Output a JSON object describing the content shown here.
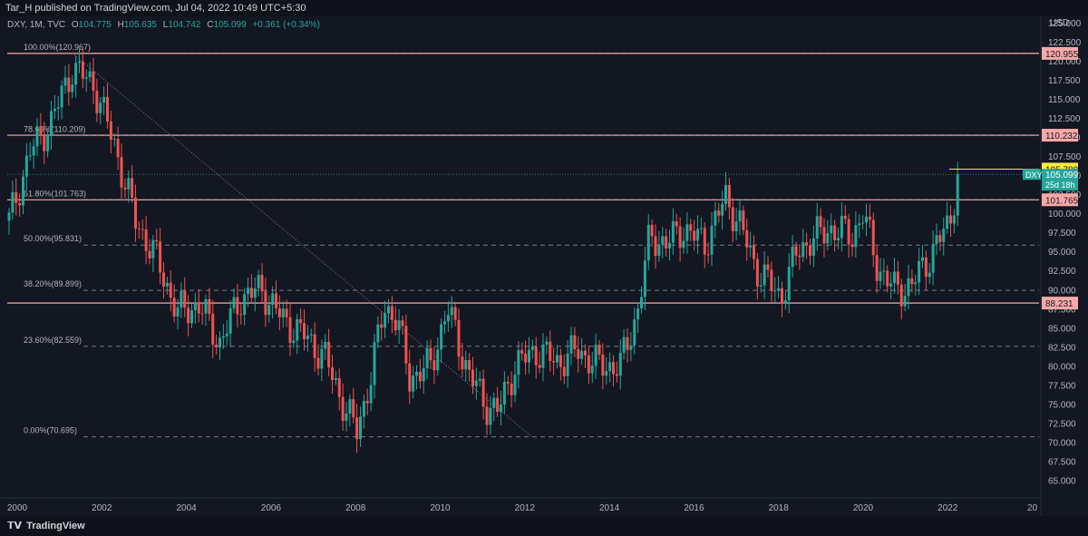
{
  "header": {
    "published": "Tar_H published on TradingView.com, Jul 04, 2022 10:49 UTC+5:30"
  },
  "legend": {
    "symbol": "DXY, 1M, TVC",
    "o_label": "O",
    "o_value": "104.775",
    "h_label": "H",
    "h_value": "105.635",
    "l_label": "L",
    "l_value": "104.742",
    "c_label": "C",
    "c_value": "105.099",
    "change": "+0.361 (+0.34%)"
  },
  "footer": {
    "brand": "TradingView",
    "logo_icon": "tradingview-logo-icon"
  },
  "colors": {
    "background": "#131722",
    "up": "#26a69a",
    "down": "#ef5350",
    "level_line": "#f7a9a8",
    "fib_line": "#787b86",
    "price_label_bg": "#f7a9a8",
    "last_price_bg": "#26a69a",
    "high_label_bg": "#ffeb3b"
  },
  "chart_data": {
    "type": "candlestick",
    "currency_label": "USD",
    "x_tick_labels": [
      "2000",
      "2002",
      "2004",
      "2006",
      "2008",
      "2010",
      "2012",
      "2014",
      "2016",
      "2018",
      "2020",
      "2022",
      "20"
    ],
    "y_tick_labels": [
      "125.000",
      "122.500",
      "120.000",
      "117.500",
      "115.000",
      "112.500",
      "110.000",
      "107.500",
      "105.000",
      "102.500",
      "100.000",
      "97.500",
      "95.000",
      "92.500",
      "90.000",
      "87.500",
      "85.000",
      "82.500",
      "80.000",
      "77.500",
      "75.000",
      "72.500",
      "70.000",
      "67.500",
      "65.000"
    ],
    "ylim": [
      64.0,
      127.0
    ],
    "xlim": [
      2000.0,
      2024.0
    ],
    "horizontal_levels": [
      {
        "price": 120.955,
        "label": "120.955"
      },
      {
        "price": 110.232,
        "label": "110.232"
      },
      {
        "price": 101.765,
        "label": "101.765"
      },
      {
        "price": 88.231,
        "label": "88.231"
      }
    ],
    "fib_levels": [
      {
        "price": 120.967,
        "label": "100.00%(120.967)"
      },
      {
        "price": 110.209,
        "label": "78.60%(110.209)"
      },
      {
        "price": 101.763,
        "label": "61.80%(101.763)"
      },
      {
        "price": 95.831,
        "label": "50.00%(95.831)"
      },
      {
        "price": 89.899,
        "label": "38.20%(89.899)"
      },
      {
        "price": 82.559,
        "label": "23.60%(82.559)"
      },
      {
        "price": 70.695,
        "label": "0.00%(70.695)"
      }
    ],
    "trend_line": {
      "x": [
        2001.5,
        2012.4
      ],
      "y": [
        121.0,
        70.7
      ]
    },
    "high_price": {
      "price": 105.788,
      "label": "105.788"
    },
    "last_price": {
      "price": 105.099,
      "label": "105.099",
      "symbol": "DXY",
      "countdown": "25d 18h"
    },
    "anchors": {
      "x": [
        2000.0,
        2000.5,
        2001.0,
        2001.5,
        2002.0,
        2002.5,
        2003.0,
        2003.5,
        2004.0,
        2004.5,
        2005.0,
        2005.5,
        2006.0,
        2006.5,
        2007.0,
        2007.5,
        2008.0,
        2008.25,
        2008.6,
        2008.9,
        2009.2,
        2009.5,
        2010.0,
        2010.4,
        2010.9,
        2011.3,
        2011.6,
        2012.0,
        2012.5,
        2013.0,
        2013.5,
        2014.0,
        2014.5,
        2014.9,
        2015.2,
        2015.6,
        2016.0,
        2016.5,
        2017.0,
        2017.3,
        2017.7,
        2018.0,
        2018.3,
        2018.7,
        2019.0,
        2019.5,
        2020.0,
        2020.25,
        2020.6,
        2021.0,
        2021.4,
        2021.8,
        2022.0,
        2022.3,
        2022.5
      ],
      "y": [
        99.0,
        108.0,
        112.0,
        119.0,
        117.0,
        109.0,
        99.0,
        94.0,
        87.0,
        88.0,
        83.0,
        89.0,
        90.0,
        86.0,
        84.0,
        81.0,
        74.0,
        71.5,
        79.0,
        88.0,
        86.0,
        78.5,
        80.0,
        87.5,
        79.0,
        75.0,
        74.0,
        80.0,
        82.0,
        80.5,
        82.0,
        80.0,
        80.0,
        87.0,
        97.0,
        96.0,
        98.0,
        96.0,
        102.0,
        99.0,
        93.0,
        91.0,
        89.0,
        95.0,
        96.5,
        98.0,
        97.0,
        100.0,
        93.0,
        90.0,
        90.5,
        94.0,
        96.0,
        98.5,
        105.1
      ]
    }
  }
}
